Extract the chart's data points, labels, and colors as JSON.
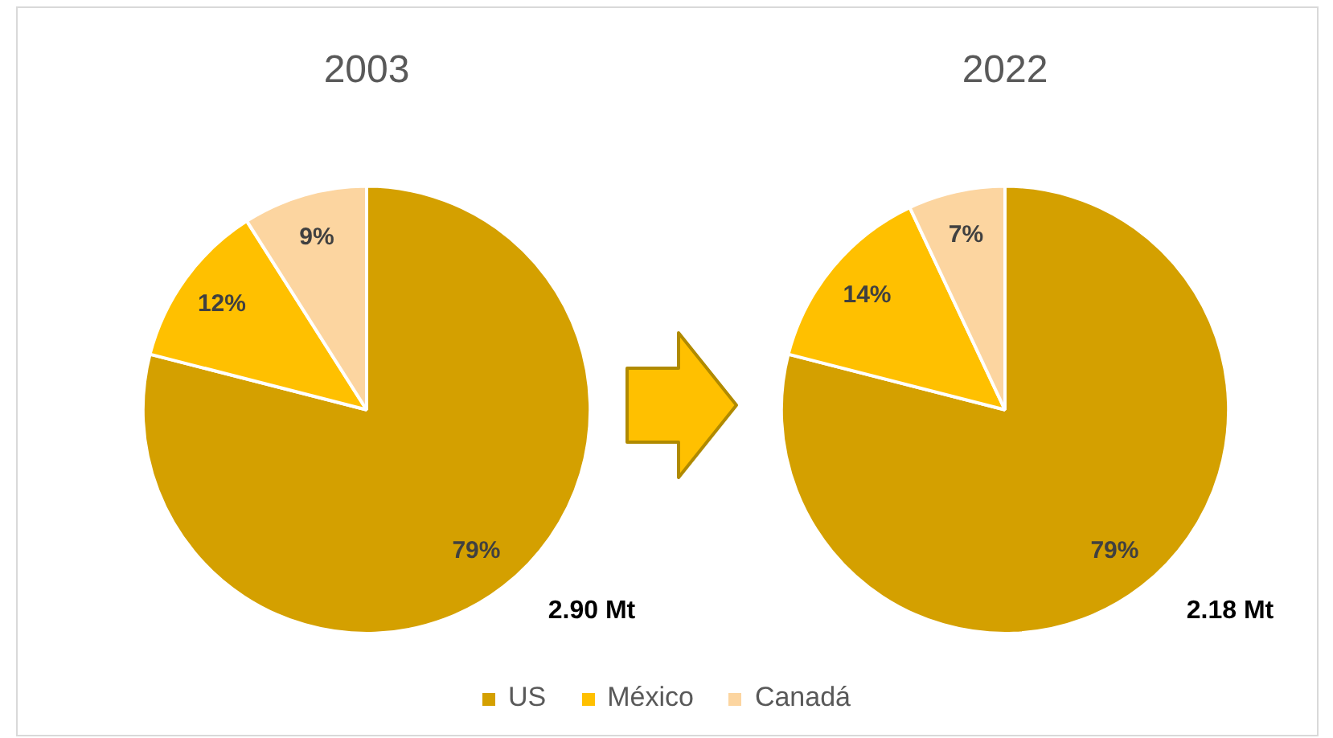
{
  "chart_data": [
    {
      "type": "pie",
      "title": "2003",
      "categories": [
        "US",
        "México",
        "Canadá"
      ],
      "values": [
        79,
        12,
        9
      ],
      "colors": [
        "#d4a000",
        "#ffc000",
        "#fcd5a0"
      ],
      "value_labels": [
        "79%",
        "12%",
        "9%"
      ],
      "annotations": [
        "2.90 Mt"
      ],
      "legend": "bottom"
    },
    {
      "type": "pie",
      "title": "2022",
      "categories": [
        null,
        null,
        null
      ],
      "values": [
        79,
        14,
        7
      ],
      "colors": [
        "#d4a000",
        "#ffc000",
        "#fcd5a0"
      ],
      "value_labels": [
        "79%",
        "14%",
        "7%"
      ],
      "annotations": [
        "2.18 Mt"
      ]
    }
  ]
}
